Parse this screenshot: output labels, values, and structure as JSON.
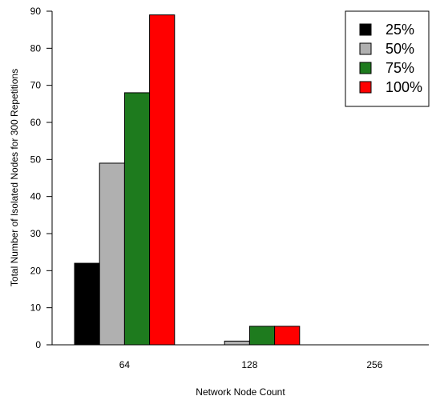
{
  "chart_data": {
    "type": "bar",
    "categories": [
      "64",
      "128",
      "256"
    ],
    "series": [
      {
        "name": "25%",
        "color": "#000000",
        "values": [
          22,
          0,
          0
        ]
      },
      {
        "name": "50%",
        "color": "#b0b0b0",
        "values": [
          49,
          1,
          0
        ]
      },
      {
        "name": "75%",
        "color": "#1e7b1e",
        "values": [
          68,
          5,
          0
        ]
      },
      {
        "name": "100%",
        "color": "#ff0000",
        "values": [
          89,
          5,
          0
        ]
      }
    ],
    "xlabel": "Network Node Count",
    "ylabel": "Total Number of Isolated Nodes for 300 Repetitions",
    "ylim": [
      0,
      90
    ],
    "yticks": [
      0,
      10,
      20,
      30,
      40,
      50,
      60,
      70,
      80,
      90
    ],
    "legend": "top-right",
    "grid": false
  }
}
